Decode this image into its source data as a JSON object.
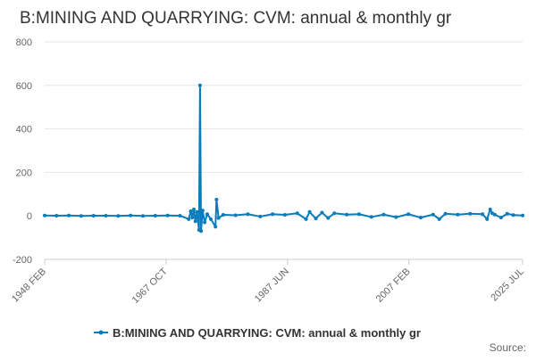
{
  "title": "B:MINING AND QUARRYING: CVM: annual & monthly gr",
  "source_label": "Source:",
  "colors": {
    "series": "#0a7cb9",
    "grid": "#e6e6e6",
    "axis": "#cccccc",
    "text": "#333333",
    "tick": "#666666"
  },
  "chart_data": {
    "type": "line",
    "title": "B:MINING AND QUARRYING: CVM: annual & monthly gr",
    "xlabel": "",
    "ylabel": "",
    "ylim": [
      -200,
      800
    ],
    "yticks": [
      -200,
      0,
      200,
      400,
      600,
      800
    ],
    "xlim": [
      "1948 FEB",
      "2025 JUL"
    ],
    "xtick_labels": [
      "1948 FEB",
      "1967 OCT",
      "1987 JUN",
      "2007 FEB",
      "2025 JUL"
    ],
    "grid": true,
    "legend_position": "bottom-center",
    "series": [
      {
        "name": "B:MINING AND QUARRYING: CVM: annual & monthly gr",
        "points": [
          [
            "1948 FEB",
            2
          ],
          [
            "1950 JAN",
            1
          ],
          [
            "1952 JAN",
            2
          ],
          [
            "1954 JAN",
            0
          ],
          [
            "1956 JAN",
            1
          ],
          [
            "1958 JAN",
            1
          ],
          [
            "1960 JAN",
            0
          ],
          [
            "1962 JAN",
            2
          ],
          [
            "1964 JAN",
            0
          ],
          [
            "1966 JAN",
            1
          ],
          [
            "1968 JAN",
            2
          ],
          [
            "1970 JAN",
            1
          ],
          [
            "1971 JUN",
            -15
          ],
          [
            "1971 OCT",
            22
          ],
          [
            "1972 JAN",
            -8
          ],
          [
            "1972 APR",
            30
          ],
          [
            "1972 JUL",
            -25
          ],
          [
            "1972 OCT",
            18
          ],
          [
            "1973 FEB",
            -65
          ],
          [
            "1973 APR",
            600
          ],
          [
            "1973 JUN",
            -70
          ],
          [
            "1973 SEP",
            25
          ],
          [
            "1974 JAN",
            -30
          ],
          [
            "1974 JUN",
            8
          ],
          [
            "1975 JAN",
            -15
          ],
          [
            "1975 OCT",
            -50
          ],
          [
            "1975 DEC",
            75
          ],
          [
            "1976 APR",
            -10
          ],
          [
            "1977 JAN",
            5
          ],
          [
            "1979 JAN",
            3
          ],
          [
            "1981 JAN",
            8
          ],
          [
            "1983 JAN",
            -3
          ],
          [
            "1985 JAN",
            8
          ],
          [
            "1987 JAN",
            5
          ],
          [
            "1989 JAN",
            12
          ],
          [
            "1990 JUN",
            -15
          ],
          [
            "1991 JAN",
            18
          ],
          [
            "1992 JAN",
            -12
          ],
          [
            "1993 JAN",
            15
          ],
          [
            "1994 JAN",
            -10
          ],
          [
            "1995 JAN",
            12
          ],
          [
            "1997 JAN",
            6
          ],
          [
            "1999 JAN",
            8
          ],
          [
            "2001 JAN",
            -5
          ],
          [
            "2003 JAN",
            6
          ],
          [
            "2005 JAN",
            -6
          ],
          [
            "2007 JAN",
            8
          ],
          [
            "2009 JAN",
            -8
          ],
          [
            "2011 JAN",
            6
          ],
          [
            "2012 JAN",
            -15
          ],
          [
            "2013 JAN",
            10
          ],
          [
            "2015 JAN",
            6
          ],
          [
            "2017 JAN",
            10
          ],
          [
            "2019 JAN",
            8
          ],
          [
            "2019 OCT",
            -15
          ],
          [
            "2020 APR",
            30
          ],
          [
            "2020 AUG",
            12
          ],
          [
            "2021 JAN",
            6
          ],
          [
            "2022 JAN",
            -8
          ],
          [
            "2023 JAN",
            10
          ],
          [
            "2024 JAN",
            4
          ],
          [
            "2025 JUL",
            2
          ]
        ]
      }
    ]
  }
}
